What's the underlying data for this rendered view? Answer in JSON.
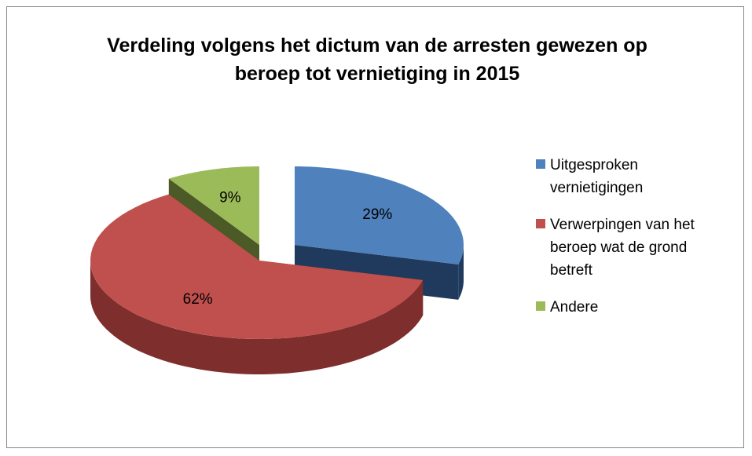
{
  "chart_data": {
    "type": "pie3d",
    "title": "Verdeling volgens het dictum van de arresten gewezen op beroep tot vernietiging in 2015",
    "categories": [
      "Uitgesproken vernietigingen",
      "Verwerpingen van het beroep wat de grond betreft",
      "Andere"
    ],
    "values": [
      29,
      62,
      9
    ],
    "value_labels": [
      "29%",
      "62%",
      "9%"
    ],
    "colors": [
      "#4f81bd",
      "#c0504d",
      "#9bbb59"
    ],
    "side_colors": [
      "#1f3a5c",
      "#7e2e2c",
      "#4b5a26"
    ],
    "legend": "right"
  }
}
